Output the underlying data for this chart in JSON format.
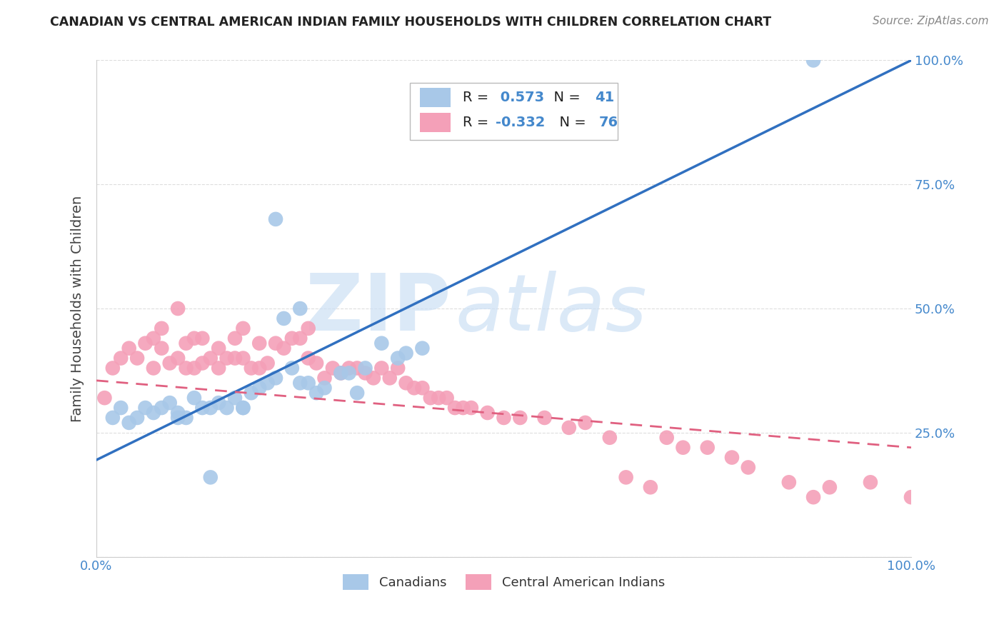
{
  "title": "CANADIAN VS CENTRAL AMERICAN INDIAN FAMILY HOUSEHOLDS WITH CHILDREN CORRELATION CHART",
  "source": "Source: ZipAtlas.com",
  "ylabel": "Family Households with Children",
  "xlim": [
    0,
    1.0
  ],
  "ylim": [
    0,
    1.0
  ],
  "canadian_R": 0.573,
  "canadian_N": 41,
  "central_american_R": -0.332,
  "central_american_N": 76,
  "canadian_color": "#a8c8e8",
  "central_american_color": "#f4a0b8",
  "canadian_line_color": "#3070c0",
  "central_american_line_color": "#e06080",
  "legend_label_canadian": "Canadians",
  "legend_label_central": "Central American Indians",
  "watermark_zip": "ZIP",
  "watermark_atlas": "atlas",
  "background_color": "#ffffff",
  "grid_color": "#dddddd",
  "title_color": "#222222",
  "axis_label_color": "#444444",
  "tick_label_color": "#4488cc",
  "value_color": "#4488cc",
  "canadians_x": [
    0.02,
    0.03,
    0.04,
    0.05,
    0.06,
    0.07,
    0.08,
    0.09,
    0.1,
    0.11,
    0.12,
    0.13,
    0.14,
    0.15,
    0.16,
    0.17,
    0.18,
    0.19,
    0.2,
    0.21,
    0.22,
    0.23,
    0.24,
    0.25,
    0.26,
    0.27,
    0.28,
    0.3,
    0.31,
    0.32,
    0.33,
    0.35,
    0.37,
    0.38,
    0.4,
    0.88,
    0.25,
    0.22,
    0.18,
    0.14,
    0.1
  ],
  "canadians_y": [
    0.28,
    0.3,
    0.27,
    0.28,
    0.3,
    0.29,
    0.3,
    0.31,
    0.29,
    0.28,
    0.32,
    0.3,
    0.16,
    0.31,
    0.3,
    0.32,
    0.3,
    0.33,
    0.34,
    0.35,
    0.36,
    0.48,
    0.38,
    0.35,
    0.35,
    0.33,
    0.34,
    0.37,
    0.37,
    0.33,
    0.38,
    0.43,
    0.4,
    0.41,
    0.42,
    1.0,
    0.5,
    0.68,
    0.3,
    0.3,
    0.28
  ],
  "central_x": [
    0.01,
    0.02,
    0.03,
    0.04,
    0.05,
    0.06,
    0.07,
    0.07,
    0.08,
    0.08,
    0.09,
    0.1,
    0.1,
    0.11,
    0.11,
    0.12,
    0.12,
    0.13,
    0.13,
    0.14,
    0.15,
    0.15,
    0.16,
    0.17,
    0.17,
    0.18,
    0.18,
    0.19,
    0.2,
    0.2,
    0.21,
    0.22,
    0.23,
    0.24,
    0.25,
    0.26,
    0.26,
    0.27,
    0.28,
    0.29,
    0.3,
    0.31,
    0.32,
    0.33,
    0.34,
    0.35,
    0.36,
    0.37,
    0.38,
    0.39,
    0.4,
    0.41,
    0.42,
    0.43,
    0.44,
    0.45,
    0.46,
    0.48,
    0.5,
    0.52,
    0.55,
    0.58,
    0.6,
    0.63,
    0.65,
    0.68,
    0.7,
    0.72,
    0.75,
    0.78,
    0.8,
    0.85,
    0.88,
    0.9,
    0.95,
    1.0
  ],
  "central_y": [
    0.32,
    0.38,
    0.4,
    0.42,
    0.4,
    0.43,
    0.38,
    0.44,
    0.42,
    0.46,
    0.39,
    0.4,
    0.5,
    0.38,
    0.43,
    0.38,
    0.44,
    0.39,
    0.44,
    0.4,
    0.42,
    0.38,
    0.4,
    0.4,
    0.44,
    0.4,
    0.46,
    0.38,
    0.38,
    0.43,
    0.39,
    0.43,
    0.42,
    0.44,
    0.44,
    0.4,
    0.46,
    0.39,
    0.36,
    0.38,
    0.37,
    0.38,
    0.38,
    0.37,
    0.36,
    0.38,
    0.36,
    0.38,
    0.35,
    0.34,
    0.34,
    0.32,
    0.32,
    0.32,
    0.3,
    0.3,
    0.3,
    0.29,
    0.28,
    0.28,
    0.28,
    0.26,
    0.27,
    0.24,
    0.16,
    0.14,
    0.24,
    0.22,
    0.22,
    0.2,
    0.18,
    0.15,
    0.12,
    0.14,
    0.15,
    0.12
  ],
  "can_line_x0": 0.0,
  "can_line_y0": 0.195,
  "can_line_x1": 1.0,
  "can_line_y1": 1.0,
  "cent_line_x0": 0.0,
  "cent_line_y0": 0.355,
  "cent_line_x1": 1.0,
  "cent_line_y1": 0.22
}
